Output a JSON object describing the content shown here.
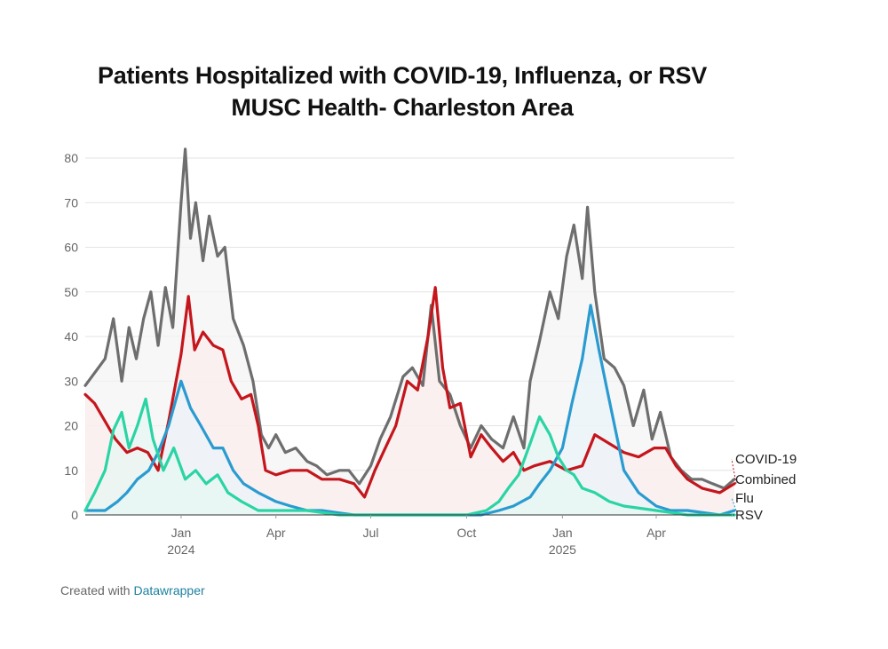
{
  "title_line1": "Patients Hospitalized with COVID-19, Influenza, or RSV",
  "title_line2": "MUSC Health- Charleston Area",
  "footer": {
    "prefix": "Created with",
    "link": "Datawrapper"
  },
  "chart_data": {
    "type": "line",
    "x_start": "2023-10-01",
    "x_end": "2025-06-15",
    "ylim": [
      0,
      80
    ],
    "y_ticks": [
      0,
      10,
      20,
      30,
      40,
      50,
      60,
      70,
      80
    ],
    "x_ticks": [
      {
        "date": "2024-01-01",
        "label": "Jan",
        "year": "2024"
      },
      {
        "date": "2024-04-01",
        "label": "Apr",
        "year": ""
      },
      {
        "date": "2024-07-01",
        "label": "Jul",
        "year": ""
      },
      {
        "date": "2024-10-01",
        "label": "Oct",
        "year": ""
      },
      {
        "date": "2025-01-01",
        "label": "Jan",
        "year": "2025"
      },
      {
        "date": "2025-04-01",
        "label": "Apr",
        "year": ""
      }
    ],
    "gridlines": true,
    "legend": "direct-labels-right",
    "series": [
      {
        "name": "Combined",
        "color": "#6e6e6e",
        "points": [
          [
            "2023-10-01",
            29
          ],
          [
            "2023-10-20",
            35
          ],
          [
            "2023-10-28",
            44
          ],
          [
            "2023-11-05",
            30
          ],
          [
            "2023-11-12",
            42
          ],
          [
            "2023-11-19",
            35
          ],
          [
            "2023-11-26",
            44
          ],
          [
            "2023-12-03",
            50
          ],
          [
            "2023-12-10",
            38
          ],
          [
            "2023-12-17",
            51
          ],
          [
            "2023-12-24",
            42
          ],
          [
            "2024-01-01",
            70
          ],
          [
            "2024-01-05",
            82
          ],
          [
            "2024-01-10",
            62
          ],
          [
            "2024-01-15",
            70
          ],
          [
            "2024-01-22",
            57
          ],
          [
            "2024-01-28",
            67
          ],
          [
            "2024-02-05",
            58
          ],
          [
            "2024-02-12",
            60
          ],
          [
            "2024-02-20",
            44
          ],
          [
            "2024-03-01",
            38
          ],
          [
            "2024-03-10",
            30
          ],
          [
            "2024-03-18",
            18
          ],
          [
            "2024-03-25",
            15
          ],
          [
            "2024-04-01",
            18
          ],
          [
            "2024-04-10",
            14
          ],
          [
            "2024-04-20",
            15
          ],
          [
            "2024-05-01",
            12
          ],
          [
            "2024-05-10",
            11
          ],
          [
            "2024-05-20",
            9
          ],
          [
            "2024-06-01",
            10
          ],
          [
            "2024-06-10",
            10
          ],
          [
            "2024-06-20",
            7
          ],
          [
            "2024-07-01",
            11
          ],
          [
            "2024-07-10",
            17
          ],
          [
            "2024-07-20",
            22
          ],
          [
            "2024-08-01",
            31
          ],
          [
            "2024-08-10",
            33
          ],
          [
            "2024-08-20",
            29
          ],
          [
            "2024-08-28",
            47
          ],
          [
            "2024-09-05",
            30
          ],
          [
            "2024-09-15",
            27
          ],
          [
            "2024-09-25",
            20
          ],
          [
            "2024-10-05",
            15
          ],
          [
            "2024-10-15",
            20
          ],
          [
            "2024-10-25",
            17
          ],
          [
            "2024-11-05",
            15
          ],
          [
            "2024-11-15",
            22
          ],
          [
            "2024-11-25",
            15
          ],
          [
            "2024-12-01",
            30
          ],
          [
            "2024-12-10",
            39
          ],
          [
            "2024-12-20",
            50
          ],
          [
            "2024-12-28",
            44
          ],
          [
            "2025-01-05",
            58
          ],
          [
            "2025-01-12",
            65
          ],
          [
            "2025-01-20",
            53
          ],
          [
            "2025-01-25",
            69
          ],
          [
            "2025-02-01",
            50
          ],
          [
            "2025-02-10",
            35
          ],
          [
            "2025-02-20",
            33
          ],
          [
            "2025-03-01",
            29
          ],
          [
            "2025-03-10",
            20
          ],
          [
            "2025-03-20",
            28
          ],
          [
            "2025-03-28",
            17
          ],
          [
            "2025-04-05",
            23
          ],
          [
            "2025-04-15",
            13
          ],
          [
            "2025-04-25",
            10
          ],
          [
            "2025-05-05",
            8
          ],
          [
            "2025-05-15",
            8
          ],
          [
            "2025-05-25",
            7
          ],
          [
            "2025-06-05",
            6
          ],
          [
            "2025-06-15",
            8
          ]
        ]
      },
      {
        "name": "COVID-19",
        "color": "#c4161c",
        "points": [
          [
            "2023-10-01",
            27
          ],
          [
            "2023-10-10",
            25
          ],
          [
            "2023-10-20",
            21
          ],
          [
            "2023-10-30",
            17
          ],
          [
            "2023-11-10",
            14
          ],
          [
            "2023-11-20",
            15
          ],
          [
            "2023-11-30",
            14
          ],
          [
            "2023-12-10",
            10
          ],
          [
            "2023-12-20",
            21
          ],
          [
            "2024-01-01",
            36
          ],
          [
            "2024-01-08",
            49
          ],
          [
            "2024-01-14",
            37
          ],
          [
            "2024-01-22",
            41
          ],
          [
            "2024-02-01",
            38
          ],
          [
            "2024-02-10",
            37
          ],
          [
            "2024-02-18",
            30
          ],
          [
            "2024-02-28",
            26
          ],
          [
            "2024-03-08",
            27
          ],
          [
            "2024-03-15",
            20
          ],
          [
            "2024-03-22",
            10
          ],
          [
            "2024-04-01",
            9
          ],
          [
            "2024-04-15",
            10
          ],
          [
            "2024-05-01",
            10
          ],
          [
            "2024-05-15",
            8
          ],
          [
            "2024-06-01",
            8
          ],
          [
            "2024-06-15",
            7
          ],
          [
            "2024-06-25",
            4
          ],
          [
            "2024-07-05",
            10
          ],
          [
            "2024-07-15",
            15
          ],
          [
            "2024-07-25",
            20
          ],
          [
            "2024-08-05",
            30
          ],
          [
            "2024-08-15",
            28
          ],
          [
            "2024-08-25",
            40
          ],
          [
            "2024-09-01",
            51
          ],
          [
            "2024-09-08",
            33
          ],
          [
            "2024-09-15",
            24
          ],
          [
            "2024-09-25",
            25
          ],
          [
            "2024-10-05",
            13
          ],
          [
            "2024-10-15",
            18
          ],
          [
            "2024-10-25",
            15
          ],
          [
            "2024-11-05",
            12
          ],
          [
            "2024-11-15",
            14
          ],
          [
            "2024-11-25",
            10
          ],
          [
            "2024-12-05",
            11
          ],
          [
            "2024-12-20",
            12
          ],
          [
            "2025-01-05",
            10
          ],
          [
            "2025-01-20",
            11
          ],
          [
            "2025-02-01",
            18
          ],
          [
            "2025-02-15",
            16
          ],
          [
            "2025-03-01",
            14
          ],
          [
            "2025-03-15",
            13
          ],
          [
            "2025-03-30",
            15
          ],
          [
            "2025-04-10",
            15
          ],
          [
            "2025-04-20",
            11
          ],
          [
            "2025-05-01",
            8
          ],
          [
            "2025-05-15",
            6
          ],
          [
            "2025-06-01",
            5
          ],
          [
            "2025-06-15",
            7
          ]
        ]
      },
      {
        "name": "Flu",
        "color": "#2a9bd0",
        "points": [
          [
            "2023-10-01",
            1
          ],
          [
            "2023-10-20",
            1
          ],
          [
            "2023-11-01",
            3
          ],
          [
            "2023-11-10",
            5
          ],
          [
            "2023-11-20",
            8
          ],
          [
            "2023-12-01",
            10
          ],
          [
            "2023-12-10",
            14
          ],
          [
            "2023-12-20",
            20
          ],
          [
            "2024-01-01",
            30
          ],
          [
            "2024-01-10",
            24
          ],
          [
            "2024-01-20",
            20
          ],
          [
            "2024-02-01",
            15
          ],
          [
            "2024-02-10",
            15
          ],
          [
            "2024-02-20",
            10
          ],
          [
            "2024-03-01",
            7
          ],
          [
            "2024-03-15",
            5
          ],
          [
            "2024-04-01",
            3
          ],
          [
            "2024-04-15",
            2
          ],
          [
            "2024-05-01",
            1
          ],
          [
            "2024-05-15",
            1
          ],
          [
            "2024-06-15",
            0
          ],
          [
            "2024-07-15",
            0
          ],
          [
            "2024-08-15",
            0
          ],
          [
            "2024-09-15",
            0
          ],
          [
            "2024-10-15",
            0
          ],
          [
            "2024-11-01",
            1
          ],
          [
            "2024-11-15",
            2
          ],
          [
            "2024-12-01",
            4
          ],
          [
            "2024-12-10",
            7
          ],
          [
            "2024-12-20",
            10
          ],
          [
            "2025-01-01",
            15
          ],
          [
            "2025-01-10",
            25
          ],
          [
            "2025-01-20",
            35
          ],
          [
            "2025-01-28",
            47
          ],
          [
            "2025-02-05",
            37
          ],
          [
            "2025-02-12",
            29
          ],
          [
            "2025-02-20",
            20
          ],
          [
            "2025-03-01",
            10
          ],
          [
            "2025-03-15",
            5
          ],
          [
            "2025-04-01",
            2
          ],
          [
            "2025-04-15",
            1
          ],
          [
            "2025-05-01",
            1
          ],
          [
            "2025-06-01",
            0
          ],
          [
            "2025-06-15",
            1
          ]
        ]
      },
      {
        "name": "RSV",
        "color": "#2bd4a4",
        "points": [
          [
            "2023-10-01",
            1
          ],
          [
            "2023-10-10",
            5
          ],
          [
            "2023-10-20",
            10
          ],
          [
            "2023-10-28",
            19
          ],
          [
            "2023-11-05",
            23
          ],
          [
            "2023-11-12",
            15
          ],
          [
            "2023-11-20",
            20
          ],
          [
            "2023-11-28",
            26
          ],
          [
            "2023-12-05",
            17
          ],
          [
            "2023-12-15",
            10
          ],
          [
            "2023-12-25",
            15
          ],
          [
            "2024-01-05",
            8
          ],
          [
            "2024-01-15",
            10
          ],
          [
            "2024-01-25",
            7
          ],
          [
            "2024-02-05",
            9
          ],
          [
            "2024-02-15",
            5
          ],
          [
            "2024-02-28",
            3
          ],
          [
            "2024-03-15",
            1
          ],
          [
            "2024-04-01",
            1
          ],
          [
            "2024-05-01",
            1
          ],
          [
            "2024-06-01",
            0
          ],
          [
            "2024-07-01",
            0
          ],
          [
            "2024-08-01",
            0
          ],
          [
            "2024-09-01",
            0
          ],
          [
            "2024-10-01",
            0
          ],
          [
            "2024-10-20",
            1
          ],
          [
            "2024-11-01",
            3
          ],
          [
            "2024-11-10",
            6
          ],
          [
            "2024-11-20",
            9
          ],
          [
            "2024-12-01",
            16
          ],
          [
            "2024-12-10",
            22
          ],
          [
            "2024-12-20",
            18
          ],
          [
            "2024-12-28",
            13
          ],
          [
            "2025-01-05",
            10
          ],
          [
            "2025-01-12",
            9
          ],
          [
            "2025-01-20",
            6
          ],
          [
            "2025-02-01",
            5
          ],
          [
            "2025-02-15",
            3
          ],
          [
            "2025-03-01",
            2
          ],
          [
            "2025-04-01",
            1
          ],
          [
            "2025-05-01",
            0
          ],
          [
            "2025-06-15",
            0
          ]
        ]
      }
    ],
    "labels": [
      {
        "series": "COVID-19",
        "text": "COVID-19"
      },
      {
        "series": "Combined",
        "text": "Combined"
      },
      {
        "series": "Flu",
        "text": "Flu"
      },
      {
        "series": "RSV",
        "text": "RSV"
      }
    ]
  }
}
